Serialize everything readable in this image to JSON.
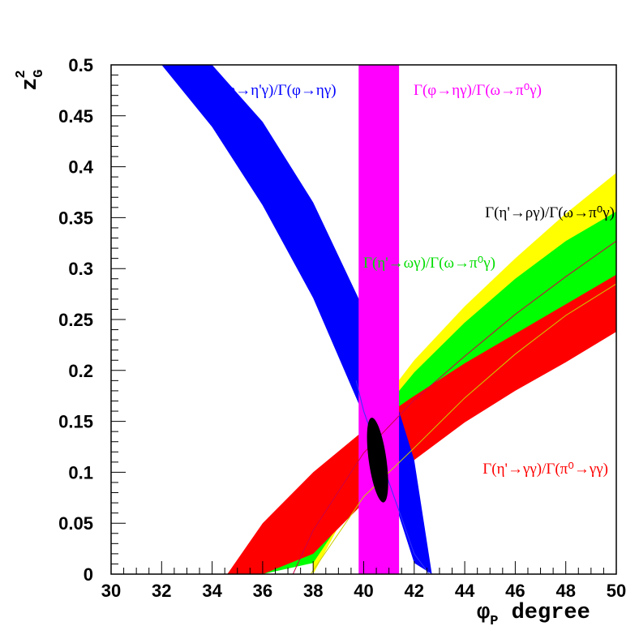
{
  "chart_data": {
    "type": "area",
    "xlabel": "φ_P degree",
    "ylabel": "z_G^2",
    "xlim": [
      30,
      50
    ],
    "ylim": [
      0,
      0.5
    ],
    "xticks": [
      "30",
      "32",
      "34",
      "36",
      "38",
      "40",
      "42",
      "44",
      "46",
      "48",
      "50"
    ],
    "yticks": [
      "0",
      "0.05",
      "0.1",
      "0.15",
      "0.2",
      "0.25",
      "0.3",
      "0.35",
      "0.4",
      "0.45",
      "0.5"
    ],
    "grid": false,
    "series": [
      {
        "name": "Γ(φ→η'γ)/Γ(φ→ηγ)",
        "color": "#0000ff",
        "label_position": "top-left",
        "x": [
          32,
          34,
          36,
          38,
          40,
          41,
          42
        ],
        "lower": [
          0.5,
          0.439,
          0.362,
          0.271,
          0.156,
          0.088,
          0.011
        ],
        "upper": [
          0.5,
          0.5,
          0.444,
          0.365,
          0.26,
          0.192,
          0.112
        ],
        "x_left_end": 32.0,
        "x_right_end": 42.7
      },
      {
        "name": "Γ(φ→ηγ)/Γ(ω→π⁰γ)",
        "color": "#ff00ff",
        "label_position": "top-right",
        "x_range": [
          39.8,
          41.4
        ],
        "y_range": [
          0,
          0.5
        ]
      },
      {
        "name": "Γ(η'→ργ)/Γ(ω→π⁰γ)",
        "color": "#ffff00",
        "label_position": "right",
        "x": [
          38.0,
          40,
          42,
          44,
          46,
          48,
          50
        ],
        "lower": [
          0.0,
          0.093,
          0.145,
          0.192,
          0.235,
          0.273,
          0.302
        ],
        "upper": [
          0.021,
          0.145,
          0.21,
          0.263,
          0.31,
          0.354,
          0.394
        ]
      },
      {
        "name": "Γ(η'→ωγ)/Γ(ω→π⁰γ)",
        "color": "#00ff00",
        "label_position": "center",
        "x": [
          36.0,
          38,
          40,
          42,
          44,
          46,
          48,
          50
        ],
        "lower": [
          0.0,
          0.011,
          0.085,
          0.135,
          0.179,
          0.22,
          0.256,
          0.287
        ],
        "upper": [
          0.025,
          0.077,
          0.138,
          0.198,
          0.247,
          0.29,
          0.327,
          0.356
        ]
      },
      {
        "name": "Γ(η'→γγ)/Γ(π⁰→γγ)",
        "color": "#ff0000",
        "label_position": "bottom-right",
        "x": [
          34.6,
          36,
          38,
          40,
          42,
          44,
          46,
          48,
          50
        ],
        "lower": [
          0.0,
          0.0,
          0.02,
          0.07,
          0.112,
          0.149,
          0.18,
          0.208,
          0.238
        ],
        "upper": [
          0.0,
          0.05,
          0.1,
          0.141,
          0.175,
          0.207,
          0.236,
          0.265,
          0.294
        ]
      }
    ],
    "overlay_lines": [
      {
        "color": "#cc0044",
        "x": [
          37.2,
          38,
          40,
          42,
          44,
          46,
          48,
          50
        ],
        "y": [
          0.0,
          0.043,
          0.119,
          0.171,
          0.214,
          0.255,
          0.292,
          0.327
        ]
      },
      {
        "color": "#cccc00",
        "x": [
          37.9,
          40,
          42,
          44,
          46,
          48,
          50
        ],
        "y": [
          0.0,
          0.076,
          0.124,
          0.173,
          0.216,
          0.254,
          0.285
        ]
      },
      {
        "color": "#3333ff",
        "x": [
          39.7,
          40,
          41,
          42,
          42.6
        ],
        "y": [
          0.19,
          0.16,
          0.09,
          0.02,
          0.0
        ]
      }
    ],
    "fit_ellipse": {
      "center": [
        40.55,
        0.112
      ],
      "semi_axis_x": 0.35,
      "semi_axis_y": 0.042,
      "color": "#000000"
    }
  }
}
